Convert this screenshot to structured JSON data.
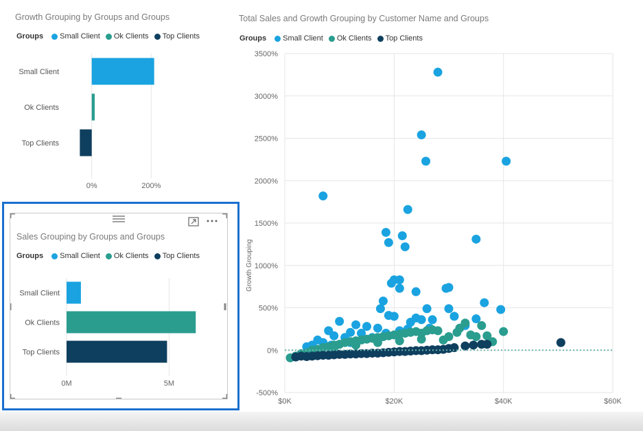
{
  "colors": {
    "small_client": "#1aa3e0",
    "ok_clients": "#2a9d8f",
    "top_clients": "#0f3f5e",
    "focus_border": "#1a6fcf",
    "grid": "#e6e6e6",
    "axis_text": "#666666"
  },
  "legend": {
    "title": "Groups",
    "items": [
      "Small Client",
      "Ok Clients",
      "Top Clients"
    ]
  },
  "visual_header": {
    "icons": [
      "drag-handle-icon",
      "focus-mode-icon",
      "more-options-icon"
    ]
  },
  "chart_data": [
    {
      "type": "bar",
      "orientation": "horizontal",
      "title": "Growth Grouping by Groups and Groups",
      "categories": [
        "Small Client",
        "Ok Clients",
        "Top Clients"
      ],
      "values": [
        2.1,
        0.1,
        -0.4
      ],
      "unit": "percent_fraction",
      "xticks": [
        "0%",
        "200%"
      ],
      "xlim": [
        -0.5,
        2.5
      ],
      "legend_position": "top-left"
    },
    {
      "type": "bar",
      "orientation": "horizontal",
      "title": "Sales Grouping by Groups and Groups",
      "categories": [
        "Small Client",
        "Ok Clients",
        "Top Clients"
      ],
      "values": [
        0.7,
        6.3,
        4.9
      ],
      "unit": "millions",
      "xticks": [
        "0M",
        "5M"
      ],
      "xlim": [
        0,
        8.5
      ],
      "legend_position": "top-left"
    },
    {
      "type": "scatter",
      "title": "Total Sales and Growth Grouping by Customer Name and Groups",
      "xlabel": "Total Sales",
      "ylabel": "Growth Grouping",
      "xlim": [
        0,
        60000
      ],
      "ylim": [
        -500,
        3500
      ],
      "xticks": [
        "$0K",
        "$20K",
        "$40K",
        "$60K"
      ],
      "yticks": [
        "-500%",
        "0%",
        "500%",
        "1000%",
        "1500%",
        "2000%",
        "2500%",
        "3000%",
        "3500%"
      ],
      "reference_line_y": 0,
      "legend_position": "top-left",
      "series": [
        {
          "name": "Small Client",
          "points": [
            [
              28000,
              3280
            ],
            [
              25000,
              2540
            ],
            [
              25800,
              2230
            ],
            [
              40500,
              2230
            ],
            [
              7000,
              1820
            ],
            [
              22500,
              1660
            ],
            [
              35000,
              1310
            ],
            [
              18500,
              1390
            ],
            [
              21500,
              1350
            ],
            [
              19000,
              1270
            ],
            [
              22000,
              1220
            ],
            [
              20000,
              830
            ],
            [
              21000,
              830
            ],
            [
              19500,
              790
            ],
            [
              24000,
              690
            ],
            [
              21000,
              730
            ],
            [
              29500,
              730
            ],
            [
              30000,
              740
            ],
            [
              18000,
              580
            ],
            [
              17500,
              490
            ],
            [
              36500,
              560
            ],
            [
              39500,
              480
            ],
            [
              26000,
              490
            ],
            [
              30000,
              490
            ],
            [
              35000,
              370
            ],
            [
              19000,
              410
            ],
            [
              20000,
              400
            ],
            [
              24000,
              380
            ],
            [
              25000,
              360
            ],
            [
              27000,
              360
            ],
            [
              31000,
              400
            ],
            [
              23000,
              330
            ],
            [
              10000,
              340
            ],
            [
              13000,
              300
            ],
            [
              15000,
              280
            ],
            [
              17000,
              260
            ],
            [
              8000,
              230
            ],
            [
              12000,
              210
            ],
            [
              14000,
              200
            ],
            [
              9000,
              170
            ],
            [
              11000,
              150
            ],
            [
              6000,
              120
            ],
            [
              7000,
              90
            ],
            [
              5000,
              60
            ],
            [
              4000,
              40
            ],
            [
              8500,
              60
            ],
            [
              12000,
              90
            ],
            [
              16000,
              150
            ],
            [
              18500,
              200
            ],
            [
              21000,
              230
            ],
            [
              22500,
              250
            ],
            [
              26500,
              260
            ],
            [
              33000,
              290
            ]
          ]
        },
        {
          "name": "Ok Clients",
          "points": [
            [
              1000,
              -90
            ],
            [
              2000,
              -70
            ],
            [
              3000,
              -40
            ],
            [
              4000,
              -30
            ],
            [
              5000,
              0
            ],
            [
              6000,
              10
            ],
            [
              7000,
              30
            ],
            [
              8000,
              40
            ],
            [
              9000,
              60
            ],
            [
              10000,
              70
            ],
            [
              11000,
              90
            ],
            [
              12000,
              100
            ],
            [
              13000,
              110
            ],
            [
              14000,
              120
            ],
            [
              15000,
              130
            ],
            [
              16000,
              140
            ],
            [
              17000,
              150
            ],
            [
              18000,
              160
            ],
            [
              19000,
              170
            ],
            [
              20000,
              180
            ],
            [
              21000,
              190
            ],
            [
              22000,
              200
            ],
            [
              23000,
              210
            ],
            [
              24000,
              220
            ],
            [
              25000,
              200
            ],
            [
              26000,
              230
            ],
            [
              27000,
              240
            ],
            [
              28000,
              230
            ],
            [
              30000,
              160
            ],
            [
              31500,
              210
            ],
            [
              32000,
              260
            ],
            [
              33000,
              320
            ],
            [
              34000,
              180
            ],
            [
              35000,
              160
            ],
            [
              36000,
              290
            ],
            [
              37000,
              170
            ],
            [
              38000,
              100
            ],
            [
              40000,
              220
            ],
            [
              9000,
              20
            ],
            [
              13000,
              60
            ],
            [
              17000,
              90
            ],
            [
              21000,
              110
            ],
            [
              25000,
              130
            ],
            [
              29000,
              120
            ]
          ]
        },
        {
          "name": "Top Clients",
          "points": [
            [
              2000,
              -80
            ],
            [
              3000,
              -70
            ],
            [
              4000,
              -75
            ],
            [
              5000,
              -70
            ],
            [
              6000,
              -65
            ],
            [
              7000,
              -60
            ],
            [
              8000,
              -60
            ],
            [
              9000,
              -55
            ],
            [
              10000,
              -50
            ],
            [
              11000,
              -50
            ],
            [
              12000,
              -45
            ],
            [
              13000,
              -45
            ],
            [
              14000,
              -40
            ],
            [
              15000,
              -40
            ],
            [
              16000,
              -35
            ],
            [
              17000,
              -35
            ],
            [
              18000,
              -30
            ],
            [
              19000,
              -25
            ],
            [
              20000,
              -20
            ],
            [
              21000,
              -15
            ],
            [
              22000,
              -15
            ],
            [
              23000,
              -10
            ],
            [
              24000,
              -5
            ],
            [
              25000,
              -5
            ],
            [
              26000,
              0
            ],
            [
              27000,
              5
            ],
            [
              28000,
              5
            ],
            [
              29000,
              10
            ],
            [
              30000,
              20
            ],
            [
              31000,
              30
            ],
            [
              33000,
              50
            ],
            [
              34500,
              60
            ],
            [
              36000,
              70
            ],
            [
              37000,
              70
            ],
            [
              50500,
              90
            ]
          ]
        }
      ]
    }
  ]
}
